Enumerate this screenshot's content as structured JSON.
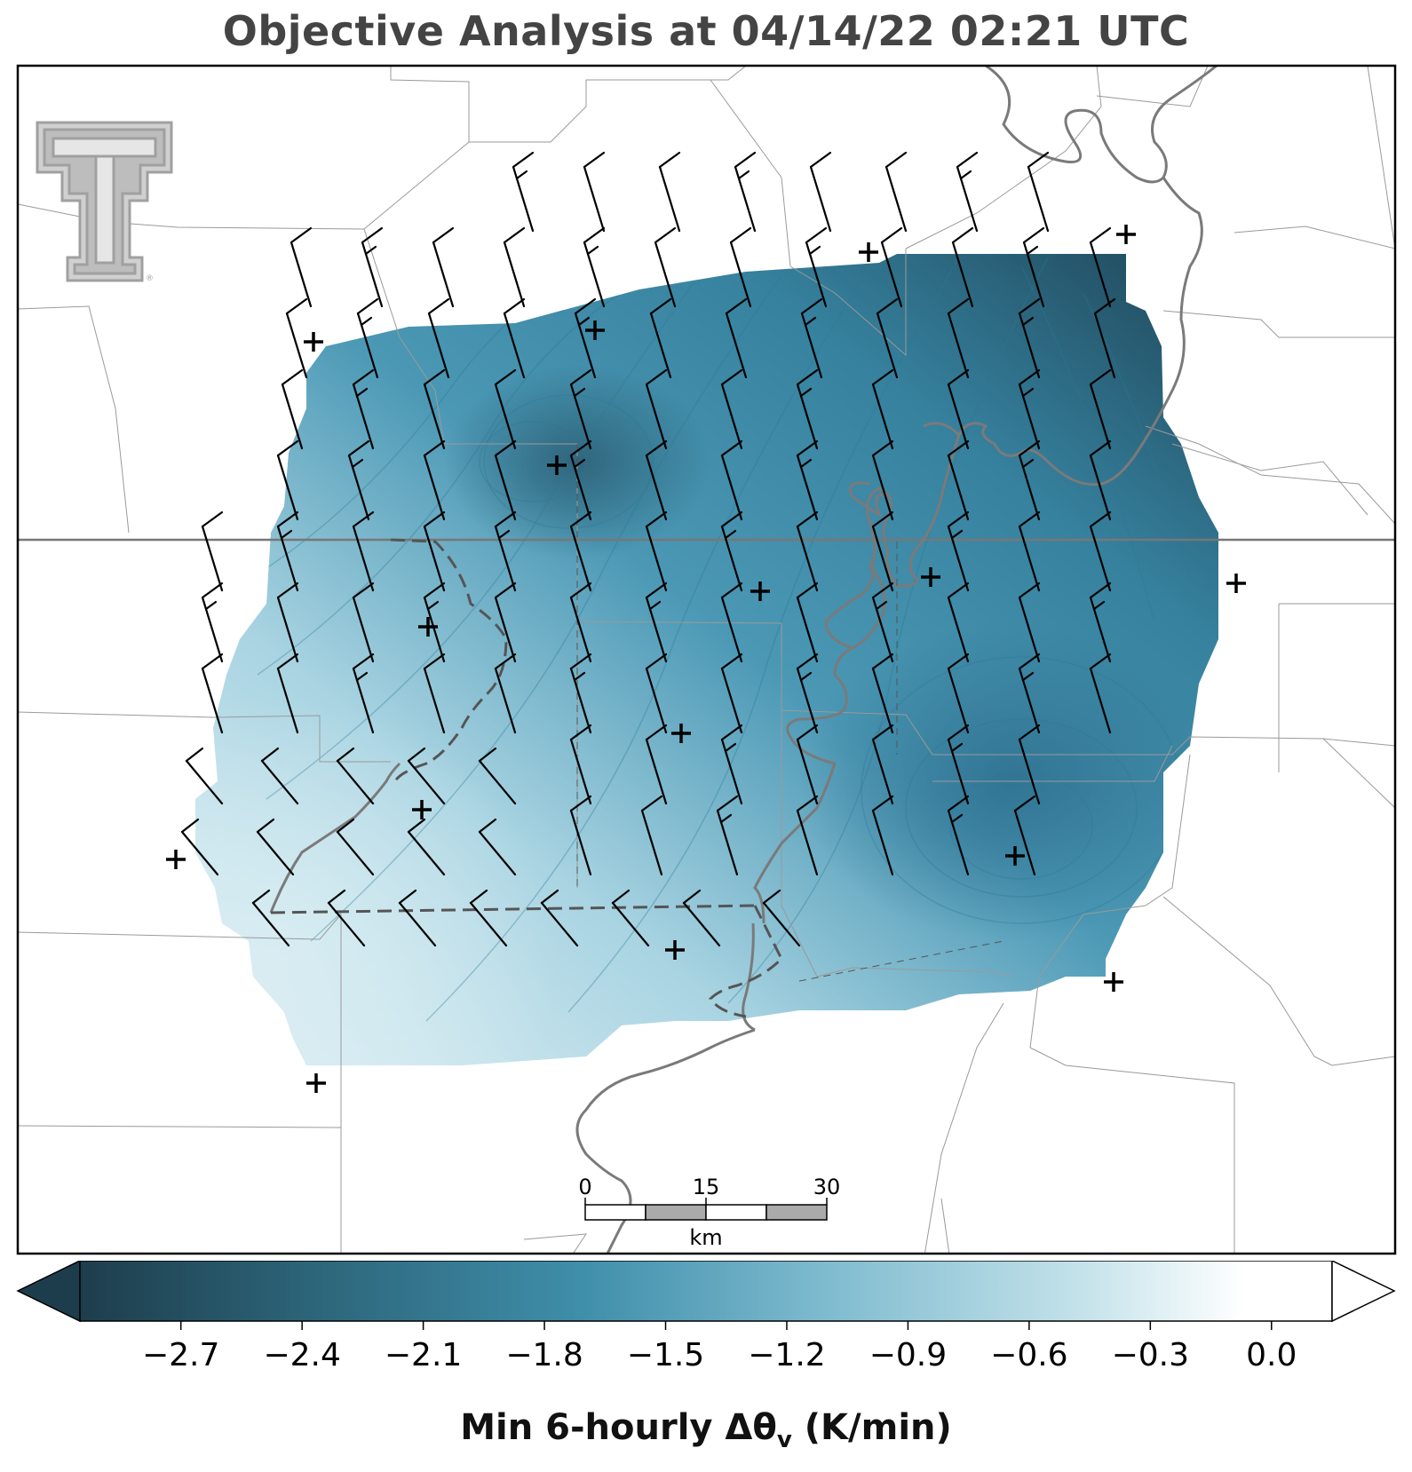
{
  "title": "Objective Analysis at 04/14/22 02:21 UTC",
  "logo": {
    "type": "texas-tech-double-t-logo"
  },
  "scale_bar": {
    "ticks": [
      "0",
      "15",
      "30"
    ],
    "unit": "km"
  },
  "colorbar": {
    "label_main": "Min 6-hourly Δθ",
    "label_sub": "v",
    "label_unit": " (K/min)",
    "ticks": [
      "−2.7",
      "−2.4",
      "−2.1",
      "−1.8",
      "−1.5",
      "−1.2",
      "−0.9",
      "−0.6",
      "−0.3",
      "0.0"
    ],
    "tick_values": [
      -2.7,
      -2.4,
      -2.1,
      -1.8,
      -1.5,
      -1.2,
      -0.9,
      -0.6,
      -0.3,
      0.0
    ],
    "range": [
      -2.95,
      0.15
    ],
    "extend": "both",
    "colormap_stops": [
      "#1f3f4f",
      "#2e6a80",
      "#3f8eaa",
      "#7fb8cc",
      "#bfe0ea",
      "#ffffff"
    ]
  },
  "colors": {
    "field_dark": "#24495a",
    "field_mid": "#3f8eaa",
    "field_light": "#cfe7ee",
    "river": "#7a7a7a",
    "border": "#8c8c8c",
    "barb": "#000000"
  }
}
